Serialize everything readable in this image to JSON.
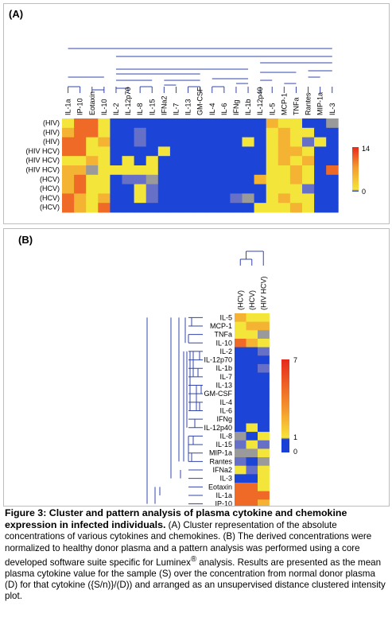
{
  "panel_a": {
    "label": "(A)",
    "columns": [
      "IL-1a",
      "IP-10",
      "Eotaxin",
      "IL-10",
      "IL-2",
      "IL-12p70",
      "IL-8",
      "IL-15",
      "IFNa2",
      "IL-7",
      "IL-13",
      "GM-CSF",
      "IL-4",
      "IL-6",
      "IFNg",
      "IL-1b",
      "IL-12p40",
      "IL-5",
      "MCP-1",
      "TNFa",
      "Rantes",
      "MIP-1a",
      "IL-3"
    ],
    "rows": [
      "(HIV)",
      "(HIV)",
      "(HIV)",
      "(HIV HCV)",
      "(HIV HCV)",
      "(HIV HCV)",
      "(HCV)",
      "(HCV)",
      "(HCV)",
      "(HCV)"
    ],
    "legend_max": "14",
    "legend_min": "0"
  },
  "panel_b": {
    "label": "(B)",
    "columns": [
      "(HCV)",
      "(HCV)",
      "(HIV HCV)"
    ],
    "rows": [
      "IL-5",
      "MCP-1",
      "TNFa",
      "IL-10",
      "IL-2",
      "IL-12p70",
      "IL-1b",
      "IL-7",
      "IL-13",
      "GM-CSF",
      "IL-4",
      "IL-6",
      "IFNg",
      "IL-12p40",
      "IL-8",
      "IL-15",
      "MIP-1a",
      "Rantes",
      "IFNa2",
      "IL-3",
      "Eotaxin",
      "IL-1a",
      "IP-10"
    ],
    "legend_max": "7",
    "legend_mid": "1",
    "legend_min": "0"
  },
  "caption": {
    "figure_title": "Figure 3: Cluster and pattern analysis of plasma cytokine and chemokine expression in infected individuals.",
    "text_1": " (A) Cluster representation of the absolute concentrations of various cytokines and chemokines.  (B) The derived concentrations were normalized to healthy donor plasma and a pattern analysis was performed using a core developed software suite specific for Luminex",
    "registered_mark": "®",
    "text_2": " analysis.  Results are presented as the mean plasma cytokine value for the sample (S) over the concentration from normal donor plasma (D) for that cytokine ({S/n)}/(D)) and arranged as an unsupervised distance clustered intensity plot."
  },
  "colors": {
    "dendrogram": "#3344aa",
    "low": "#1a3fd6",
    "mid": "#f5e43a",
    "high": "#e62a1c"
  }
}
